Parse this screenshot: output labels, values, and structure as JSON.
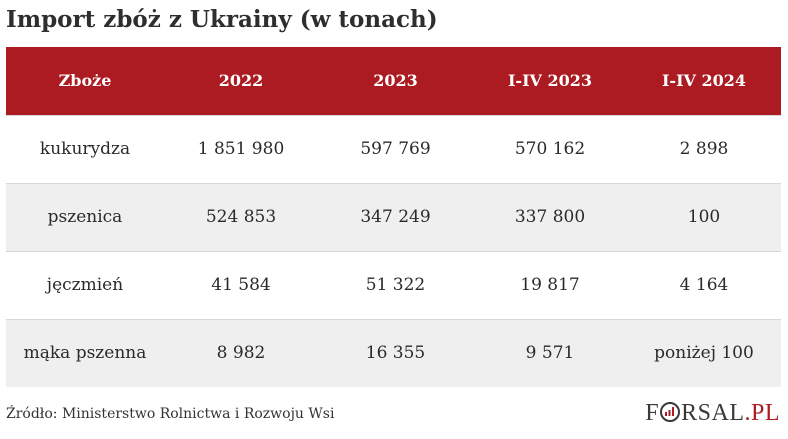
{
  "title": "Import zbóż z Ukrainy (w tonach)",
  "table": {
    "headers": [
      "Zboże",
      "2022",
      "2023",
      "I-IV 2023",
      "I-IV 2024"
    ],
    "rows": [
      [
        "kukurydza",
        "1 851 980",
        "597 769",
        "570 162",
        "2 898"
      ],
      [
        "pszenica",
        "524 853",
        "347 249",
        "337 800",
        "100"
      ],
      [
        "jęczmień",
        "41 584",
        "51 322",
        "19 817",
        "4 164"
      ],
      [
        "mąka pszenna",
        "8 982",
        "16 355",
        "9 571",
        "poniżej 100"
      ]
    ]
  },
  "source": "Źródło: Ministerstwo Rolnictwa i Rozwoju Wsi",
  "logo": {
    "part1": "F",
    "part2": "RSAL",
    "part3": ".PL"
  },
  "colors": {
    "header_bg": "#ab1b21",
    "alt_row_bg": "#efefef"
  }
}
